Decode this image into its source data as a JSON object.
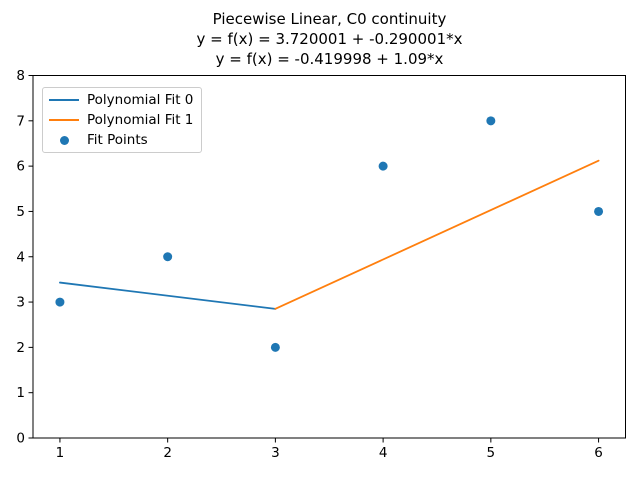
{
  "figure": {
    "background": "#ffffff"
  },
  "chart_data": {
    "type": "line",
    "title_lines": [
      "Piecewise Linear, C0 continuity",
      "y = f(x) = 3.720001 + -0.290001*x",
      "y = f(x) = -0.419998 + 1.09*x"
    ],
    "xlim": [
      0.75,
      6.25
    ],
    "ylim": [
      0,
      8
    ],
    "xticks": [
      "1",
      "2",
      "3",
      "4",
      "5",
      "6"
    ],
    "yticks": [
      "0",
      "1",
      "2",
      "3",
      "4",
      "5",
      "6",
      "7",
      "8"
    ],
    "xlabel": "",
    "ylabel": "",
    "grid": false,
    "legend_position": "upper left",
    "series": [
      {
        "name": "Polynomial Fit 0",
        "type": "line",
        "color": "#1f77b4",
        "x": [
          1,
          3
        ],
        "y": [
          3.43,
          2.85
        ],
        "equation": {
          "intercept": 3.720001,
          "slope": -0.290001
        }
      },
      {
        "name": "Polynomial Fit 1",
        "type": "line",
        "color": "#ff7f0e",
        "x": [
          3,
          6
        ],
        "y": [
          2.85,
          6.12
        ],
        "equation": {
          "intercept": -0.419998,
          "slope": 1.09
        }
      },
      {
        "name": "Fit Points",
        "type": "scatter",
        "color": "#1f77b4",
        "x": [
          1,
          2,
          3,
          4,
          5,
          6
        ],
        "y": [
          3,
          4,
          2,
          6,
          7,
          5
        ]
      }
    ]
  },
  "colors": {
    "axis": "#000000",
    "legend_border": "#cccccc",
    "blue": "#1f77b4",
    "orange": "#ff7f0e"
  }
}
